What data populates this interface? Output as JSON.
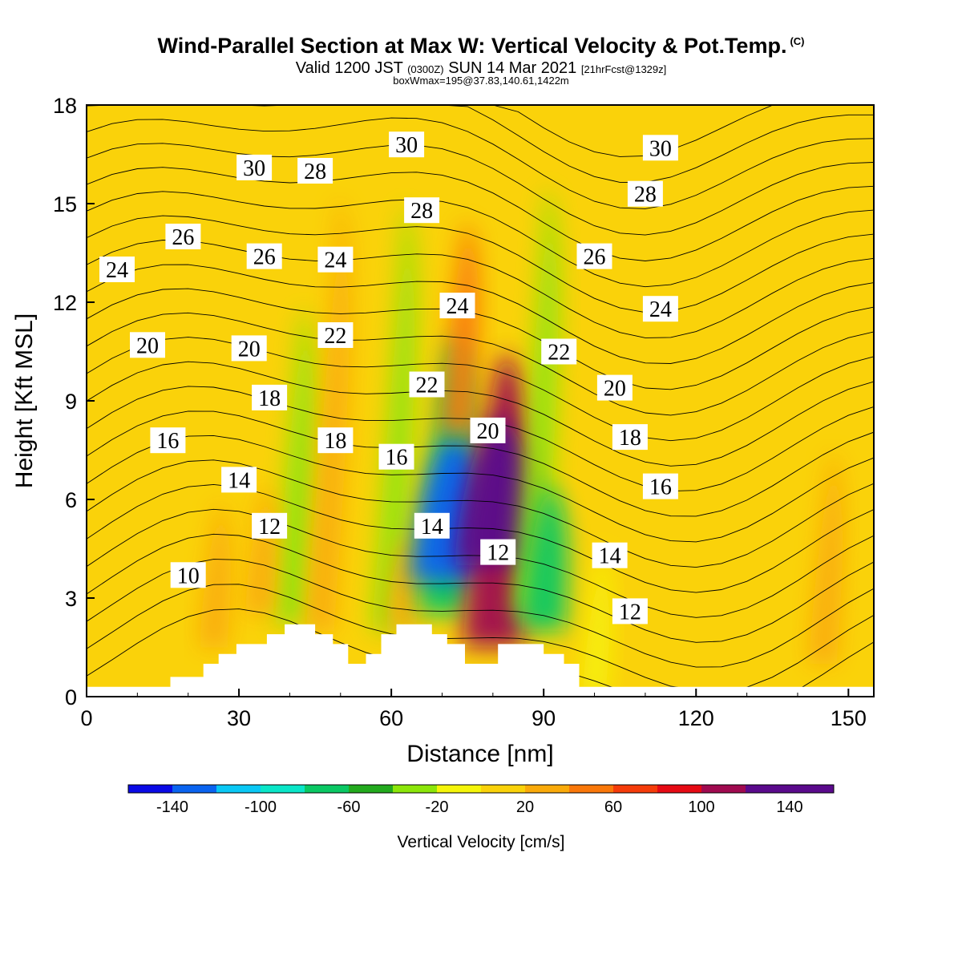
{
  "header": {
    "title_main": "Wind-Parallel Section at Max W: Vertical Velocity & Pot.Temp.",
    "copyright_mark": "(C)",
    "valid_prefix": "Valid 1200 JST",
    "valid_utc": "(0300Z)",
    "valid_date": "SUN 14 Mar 2021",
    "forecast_info": "[21hrFcst@1329z]",
    "box_info": "boxWmax=195@37.83,140.61,1422m"
  },
  "chart_data": {
    "type": "heatmap",
    "xlabel": "Distance [nm]",
    "ylabel": "Height [Kft MSL]",
    "xlim": [
      0,
      155
    ],
    "ylim": [
      0,
      18
    ],
    "x_ticks": [
      "0",
      "30",
      "60",
      "90",
      "120",
      "150"
    ],
    "y_ticks": [
      "0",
      "3",
      "6",
      "9",
      "12",
      "15",
      "18"
    ],
    "colorbar": {
      "title": "Vertical Velocity [cm/s]",
      "tick_labels": [
        "-140",
        "-100",
        "-60",
        "-20",
        "20",
        "60",
        "100",
        "140"
      ],
      "levels": [
        -160,
        -140,
        -120,
        -100,
        -80,
        -60,
        -40,
        -20,
        0,
        20,
        40,
        60,
        80,
        100,
        120,
        140,
        160
      ],
      "colors": [
        "#0a0ae6",
        "#0a64f0",
        "#0ac8f5",
        "#0ae6c8",
        "#0ac864",
        "#23aa1e",
        "#8ce60a",
        "#f5f50a",
        "#fad20a",
        "#faaa0a",
        "#fa780a",
        "#f53c0a",
        "#e60a14",
        "#a00a50",
        "#5a0a8c",
        "#5a0a8c"
      ]
    },
    "vertical_velocity_cells": [
      {
        "x": 40,
        "y_bottom": 2.2,
        "y_top": 11.8,
        "w": -35
      },
      {
        "x": 46,
        "y_bottom": 2.0,
        "y_top": 15.2,
        "w": 30
      },
      {
        "x": 34,
        "y_bottom": 2.5,
        "y_top": 6.5,
        "w": 30
      },
      {
        "x": 59,
        "y_bottom": 2.0,
        "y_top": 15.0,
        "w": -30
      },
      {
        "x": 62,
        "y_bottom": 2.0,
        "y_top": 5.0,
        "w": 35
      },
      {
        "x": 70,
        "y_bottom": 2.5,
        "y_top": 11.0,
        "w": -80
      },
      {
        "x": 71,
        "y_bottom": 3.5,
        "y_top": 8.0,
        "w": -140
      },
      {
        "x": 73,
        "y_bottom": 8.0,
        "y_top": 14.5,
        "w": 40
      },
      {
        "x": 80,
        "y_bottom": 1.5,
        "y_top": 10.5,
        "w": 110
      },
      {
        "x": 80,
        "y_bottom": 4.0,
        "y_top": 8.5,
        "w": 150
      },
      {
        "x": 87,
        "y_bottom": 2.5,
        "y_top": 15.5,
        "w": -35
      },
      {
        "x": 90,
        "y_bottom": 2.0,
        "y_top": 6.5,
        "w": -70
      },
      {
        "x": 100,
        "y_bottom": 0.0,
        "y_top": 4.5,
        "w": -20
      },
      {
        "x": 145,
        "y_bottom": 1.0,
        "y_top": 7.5,
        "w": 30
      },
      {
        "x": 25,
        "y_bottom": 1.5,
        "y_top": 6.0,
        "w": 30
      }
    ],
    "theta_contour_labels": [
      {
        "text": "10",
        "x": 20,
        "y": 3.7
      },
      {
        "text": "12",
        "x": 36,
        "y": 5.2
      },
      {
        "text": "14",
        "x": 30,
        "y": 6.6
      },
      {
        "text": "16",
        "x": 16,
        "y": 7.8
      },
      {
        "text": "18",
        "x": 36,
        "y": 9.1
      },
      {
        "text": "20",
        "x": 12,
        "y": 10.7
      },
      {
        "text": "20",
        "x": 32,
        "y": 10.6
      },
      {
        "text": "24",
        "x": 6,
        "y": 13.0
      },
      {
        "text": "26",
        "x": 19,
        "y": 14.0
      },
      {
        "text": "26",
        "x": 35,
        "y": 13.4
      },
      {
        "text": "30",
        "x": 33,
        "y": 16.1
      },
      {
        "text": "28",
        "x": 45,
        "y": 16.0
      },
      {
        "text": "24",
        "x": 49,
        "y": 13.3
      },
      {
        "text": "22",
        "x": 49,
        "y": 11.0
      },
      {
        "text": "18",
        "x": 49,
        "y": 7.8
      },
      {
        "text": "16",
        "x": 61,
        "y": 7.3
      },
      {
        "text": "14",
        "x": 68,
        "y": 5.2
      },
      {
        "text": "22",
        "x": 67,
        "y": 9.5
      },
      {
        "text": "24",
        "x": 73,
        "y": 11.9
      },
      {
        "text": "28",
        "x": 66,
        "y": 14.8
      },
      {
        "text": "30",
        "x": 63,
        "y": 16.8
      },
      {
        "text": "20",
        "x": 79,
        "y": 8.1
      },
      {
        "text": "12",
        "x": 81,
        "y": 4.4
      },
      {
        "text": "22",
        "x": 93,
        "y": 10.5
      },
      {
        "text": "26",
        "x": 100,
        "y": 13.4
      },
      {
        "text": "20",
        "x": 104,
        "y": 9.4
      },
      {
        "text": "18",
        "x": 107,
        "y": 7.9
      },
      {
        "text": "16",
        "x": 113,
        "y": 6.4
      },
      {
        "text": "14",
        "x": 103,
        "y": 4.3
      },
      {
        "text": "12",
        "x": 107,
        "y": 2.6
      },
      {
        "text": "24",
        "x": 113,
        "y": 11.8
      },
      {
        "text": "28",
        "x": 110,
        "y": 15.3
      },
      {
        "text": "30",
        "x": 113,
        "y": 16.7
      }
    ],
    "terrain_kft": [
      {
        "x": 0,
        "h": 0.3
      },
      {
        "x": 16.5,
        "h": 0.3
      },
      {
        "x": 16.5,
        "h": 0.6
      },
      {
        "x": 23,
        "h": 0.6
      },
      {
        "x": 23,
        "h": 1.0
      },
      {
        "x": 26,
        "h": 1.0
      },
      {
        "x": 26,
        "h": 1.3
      },
      {
        "x": 29.5,
        "h": 1.3
      },
      {
        "x": 29.5,
        "h": 1.6
      },
      {
        "x": 35.5,
        "h": 1.6
      },
      {
        "x": 35.5,
        "h": 1.9
      },
      {
        "x": 39,
        "h": 1.9
      },
      {
        "x": 39,
        "h": 2.2
      },
      {
        "x": 45,
        "h": 2.2
      },
      {
        "x": 45,
        "h": 1.9
      },
      {
        "x": 48.5,
        "h": 1.9
      },
      {
        "x": 48.5,
        "h": 1.6
      },
      {
        "x": 51.5,
        "h": 1.6
      },
      {
        "x": 51.5,
        "h": 1.0
      },
      {
        "x": 55,
        "h": 1.0
      },
      {
        "x": 55,
        "h": 1.3
      },
      {
        "x": 58,
        "h": 1.3
      },
      {
        "x": 58,
        "h": 1.9
      },
      {
        "x": 61,
        "h": 1.9
      },
      {
        "x": 61,
        "h": 2.2
      },
      {
        "x": 68,
        "h": 2.2
      },
      {
        "x": 68,
        "h": 1.9
      },
      {
        "x": 71,
        "h": 1.9
      },
      {
        "x": 71,
        "h": 1.6
      },
      {
        "x": 74.5,
        "h": 1.6
      },
      {
        "x": 74.5,
        "h": 1.0
      },
      {
        "x": 81,
        "h": 1.0
      },
      {
        "x": 81,
        "h": 1.6
      },
      {
        "x": 90,
        "h": 1.6
      },
      {
        "x": 90,
        "h": 1.3
      },
      {
        "x": 94,
        "h": 1.3
      },
      {
        "x": 94,
        "h": 1.0
      },
      {
        "x": 97,
        "h": 1.0
      },
      {
        "x": 97,
        "h": 0.3
      },
      {
        "x": 155,
        "h": 0.3
      }
    ]
  }
}
